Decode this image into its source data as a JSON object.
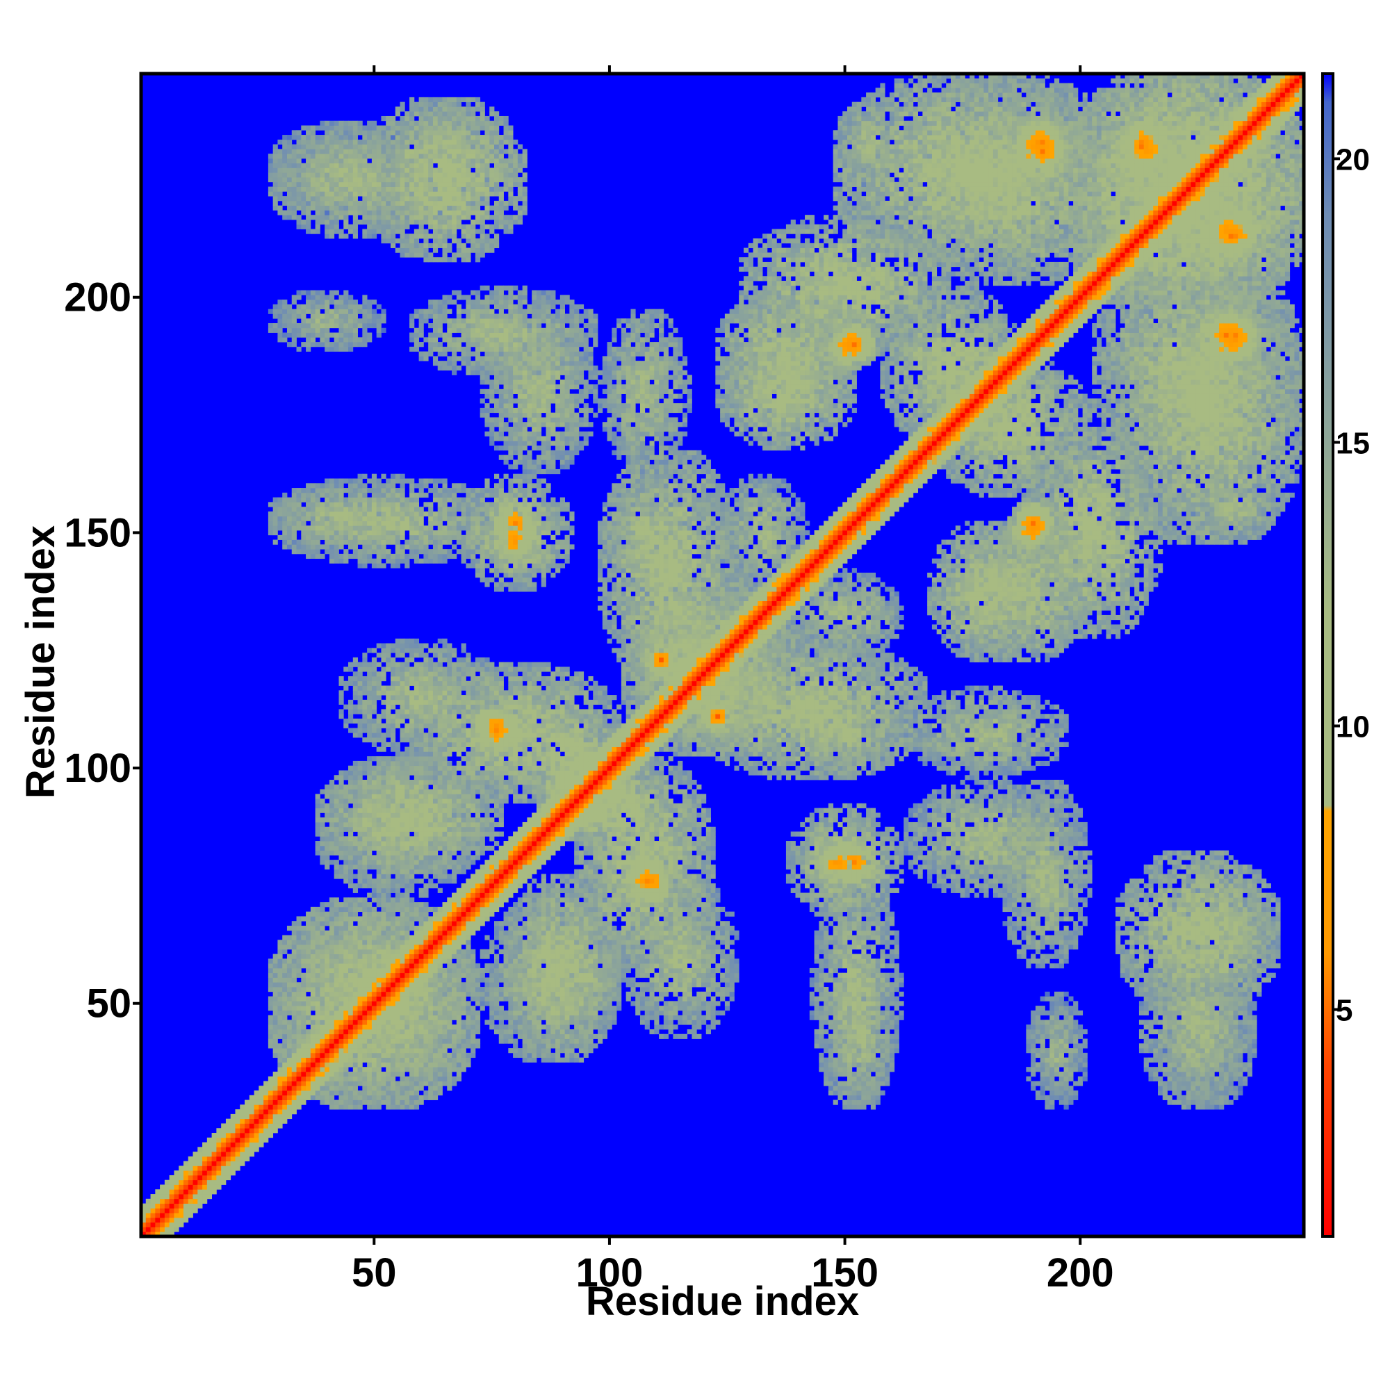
{
  "chart_data": {
    "type": "heatmap",
    "title": "",
    "xlabel": "Residue index",
    "ylabel": "Residue index",
    "xlim": [
      1,
      247
    ],
    "ylim": [
      1,
      247
    ],
    "x_ticks": [
      50,
      100,
      150,
      200
    ],
    "y_ticks": [
      50,
      100,
      150,
      200
    ],
    "x_tick_labels": [
      "50",
      "100",
      "150",
      "200"
    ],
    "y_tick_labels": [
      "50",
      "100",
      "150",
      "200"
    ],
    "colorbar": {
      "range": [
        1,
        21.5
      ],
      "ticks": [
        5,
        10,
        15,
        20
      ],
      "tick_labels": [
        "5",
        "10",
        "15",
        "20"
      ],
      "stops": [
        {
          "value": 1,
          "color": "#ff0000"
        },
        {
          "value": 4,
          "color": "#ff4400"
        },
        {
          "value": 6,
          "color": "#ff9900"
        },
        {
          "value": 8.5,
          "color": "#ffa500"
        },
        {
          "value": 8.6,
          "color": "#a8bb82"
        },
        {
          "value": 12,
          "color": "#a8bb82"
        },
        {
          "value": 19,
          "color": "#6e8cb4"
        },
        {
          "value": 21,
          "color": "#4466cc"
        },
        {
          "value": 21.5,
          "color": "#0000ff"
        }
      ]
    },
    "background_color": "#0000ff",
    "matrix_symmetric": true,
    "diagonal_value": 1,
    "contact_regions": [
      {
        "x": [
          1,
          247
        ],
        "y": [
          1,
          247
        ],
        "kind": "diagonal",
        "width": 6,
        "value": 3
      },
      {
        "x": [
          30,
          70
        ],
        "y": [
          30,
          70
        ],
        "kind": "block",
        "value": 11
      },
      {
        "x": [
          72,
          80
        ],
        "y": [
          104,
          112
        ],
        "value": 5
      },
      {
        "x": [
          77,
          83
        ],
        "y": [
          145,
          152
        ],
        "value": 5
      },
      {
        "x": [
          106,
          112
        ],
        "y": [
          72,
          80
        ],
        "value": 5
      },
      {
        "x": [
          148,
          156
        ],
        "y": [
          76,
          84
        ],
        "value": 5
      },
      {
        "x": [
          108,
          114
        ],
        "y": [
          120,
          126
        ],
        "value": 5
      },
      {
        "x": [
          147,
          155
        ],
        "y": [
          186,
          193
        ],
        "value": 5
      },
      {
        "x": [
          187,
          194
        ],
        "y": [
          148,
          156
        ],
        "value": 5
      },
      {
        "x": [
          186,
          197
        ],
        "y": [
          226,
          237
        ],
        "value": 5
      },
      {
        "x": [
          209,
          218
        ],
        "y": [
          226,
          237
        ],
        "value": 5
      },
      {
        "x": [
          228,
          237
        ],
        "y": [
          186,
          197
        ],
        "value": 5
      },
      {
        "x": [
          228,
          237
        ],
        "y": [
          209,
          218
        ],
        "value": 5
      },
      {
        "x": [
          150,
          160
        ],
        "y": [
          226,
          240
        ],
        "value": 12
      },
      {
        "x": [
          55,
          75
        ],
        "y": [
          220,
          240
        ],
        "value": 12
      },
      {
        "x": [
          30,
          55
        ],
        "y": [
          220,
          235
        ],
        "value": 13
      },
      {
        "x": [
          60,
          95
        ],
        "y": [
          185,
          200
        ],
        "value": 12
      },
      {
        "x": [
          30,
          50
        ],
        "y": [
          190,
          200
        ],
        "value": 13
      },
      {
        "x": [
          30,
          55
        ],
        "y": [
          148,
          158
        ],
        "value": 12
      },
      {
        "x": [
          70,
          90
        ],
        "y": [
          140,
          160
        ],
        "value": 11
      },
      {
        "x": [
          100,
          115
        ],
        "y": [
          140,
          160
        ],
        "value": 12
      },
      {
        "x": [
          125,
          140
        ],
        "y": [
          140,
          160
        ],
        "value": 12
      },
      {
        "x": [
          105,
          140
        ],
        "y": [
          105,
          135
        ],
        "value": 11
      },
      {
        "x": [
          120,
          165
        ],
        "y": [
          100,
          125
        ],
        "value": 11
      },
      {
        "x": [
          165,
          195
        ],
        "y": [
          100,
          115
        ],
        "value": 12
      },
      {
        "x": [
          165,
          195
        ],
        "y": [
          75,
          95
        ],
        "value": 12
      },
      {
        "x": [
          210,
          240
        ],
        "y": [
          50,
          80
        ],
        "value": 11
      },
      {
        "x": [
          215,
          235
        ],
        "y": [
          30,
          60
        ],
        "value": 12
      },
      {
        "x": [
          145,
          160
        ],
        "y": [
          30,
          75
        ],
        "value": 12
      },
      {
        "x": [
          80,
          100
        ],
        "y": [
          40,
          75
        ],
        "value": 11
      },
      {
        "x": [
          105,
          125
        ],
        "y": [
          45,
          75
        ],
        "value": 12
      },
      {
        "x": [
          190,
          215
        ],
        "y": [
          130,
          170
        ],
        "value": 11
      },
      {
        "x": [
          160,
          185
        ],
        "y": [
          170,
          200
        ],
        "value": 11
      },
      {
        "x": [
          210,
          245
        ],
        "y": [
          150,
          200
        ],
        "value": 11
      },
      {
        "x": [
          200,
          245
        ],
        "y": [
          200,
          247
        ],
        "value": 10
      },
      {
        "x": [
          165,
          205
        ],
        "y": [
          205,
          245
        ],
        "value": 11
      },
      {
        "x": [
          125,
          150
        ],
        "y": [
          170,
          190
        ],
        "value": 11
      },
      {
        "x": [
          175,
          200
        ],
        "y": [
          125,
          150
        ],
        "value": 11
      },
      {
        "x": [
          85,
          100
        ],
        "y": [
          90,
          110
        ],
        "value": 10
      },
      {
        "x": [
          40,
          70
        ],
        "y": [
          75,
          100
        ],
        "value": 12
      },
      {
        "x": [
          95,
          120
        ],
        "y": [
          60,
          100
        ],
        "value": 11
      }
    ]
  }
}
